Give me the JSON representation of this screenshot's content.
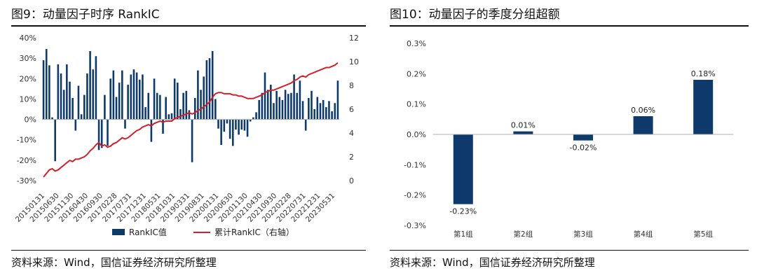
{
  "colors": {
    "bar": "#0d3a6b",
    "line": "#d0202a",
    "axis": "#b0b0b0"
  },
  "left_panel": {
    "title": "图9：动量因子时序 RankIC",
    "source": "资料来源：Wind，国信证券经济研究所整理"
  },
  "right_panel": {
    "title": "图10：动量因子的季度分组超额",
    "source": "资料来源：Wind，国信证券经济研究所整理"
  },
  "chart_data": [
    {
      "type": "bar+line",
      "title": "图9：动量因子时序 RankIC",
      "y_left_ticks": [
        "40%",
        "30%",
        "20%",
        "10%",
        "0%",
        "-10%",
        "-20%",
        "-30%"
      ],
      "y_left_range": [
        -30,
        40
      ],
      "y_right_ticks": [
        "12",
        "10",
        "8",
        "6",
        "4",
        "2",
        "0"
      ],
      "y_right_range": [
        0,
        12
      ],
      "x_tick_labels": [
        "20150131",
        "20150630",
        "20151130",
        "20160430",
        "20160930",
        "20170228",
        "20170731",
        "20171231",
        "20180531",
        "20181031",
        "20190331",
        "20190831",
        "20200131",
        "20200630",
        "20201130",
        "20210430",
        "20210930",
        "20220228",
        "20220731",
        "20221231",
        "20230531"
      ],
      "series": [
        {
          "name": "RankIC值",
          "kind": "bar",
          "unit": "%",
          "values": [
            29,
            34.5,
            26.5,
            1,
            -20.5,
            27,
            22.5,
            14.5,
            27,
            18.5,
            10.5,
            -5.5,
            16.5,
            2.5,
            12,
            22.5,
            33.5,
            24.5,
            31,
            -15,
            -14,
            12,
            -13,
            20,
            24,
            11,
            18,
            24,
            -4.5,
            17,
            22,
            24.5,
            23,
            19.5,
            22,
            6,
            13,
            -11,
            20,
            13,
            12,
            -7,
            11,
            2.5,
            3,
            20,
            18,
            5,
            13,
            14,
            4.5,
            -21,
            10.5,
            24,
            14.5,
            21,
            29,
            30,
            33.5,
            10,
            -4.5,
            -12.5,
            -6,
            -2,
            -9.5,
            -13,
            -5,
            -7.5,
            -5,
            -5.5,
            -8.5,
            -1,
            1,
            3.5,
            9.5,
            13,
            23,
            14.5,
            17,
            8,
            14,
            11,
            9.5,
            14.5,
            12.5,
            13,
            22,
            13,
            19,
            9,
            -5.5,
            10.5,
            14,
            5,
            11,
            8,
            9.5,
            6,
            9,
            4,
            8,
            19
          ]
        },
        {
          "name": "累计RankIC（右轴）",
          "kind": "line",
          "axis": "right",
          "values": [
            0.3,
            0.6,
            0.9,
            1.0,
            0.8,
            0.9,
            1.1,
            1.3,
            1.5,
            1.7,
            1.6,
            1.8,
            1.8,
            1.9,
            2.0,
            2.2,
            2.5,
            2.7,
            3.0,
            3.2,
            2.9,
            3.0,
            2.8,
            2.9,
            3.1,
            3.2,
            3.4,
            3.6,
            3.5,
            3.6,
            3.8,
            4.0,
            4.2,
            4.3,
            4.5,
            4.6,
            4.7,
            4.6,
            4.8,
            4.9,
            5.0,
            4.9,
            5.0,
            5.0,
            5.0,
            5.2,
            5.3,
            5.4,
            5.5,
            5.6,
            5.7,
            5.6,
            5.7,
            5.9,
            6.0,
            6.2,
            6.4,
            6.6,
            7.0,
            7.3,
            7.4,
            7.4,
            7.3,
            7.3,
            7.3,
            7.2,
            7.2,
            7.1,
            7.1,
            7.0,
            6.9,
            6.9,
            6.9,
            7.0,
            7.1,
            7.2,
            7.4,
            7.5,
            7.6,
            7.6,
            7.7,
            7.8,
            7.9,
            8.0,
            8.1,
            8.2,
            8.4,
            8.5,
            8.7,
            8.8,
            8.7,
            8.9,
            9.0,
            9.1,
            9.2,
            9.3,
            9.4,
            9.5,
            9.5,
            9.6,
            9.7,
            9.9
          ]
        }
      ],
      "legend": [
        {
          "label": "RankIC值",
          "kind": "bar"
        },
        {
          "label": "累计RankIC（右轴）",
          "kind": "line"
        }
      ],
      "legend_position": "bottom"
    },
    {
      "type": "bar",
      "title": "图10：动量因子的季度分组超额",
      "categories": [
        "第1组",
        "第2组",
        "第3组",
        "第4组",
        "第5组"
      ],
      "values": [
        -0.23,
        0.01,
        -0.02,
        0.06,
        0.18
      ],
      "value_labels": [
        "-0.23%",
        "0.01%",
        "-0.02%",
        "0.06%",
        "0.18%"
      ],
      "y_ticks": [
        "0.3%",
        "0.2%",
        "0.1%",
        "0.0%",
        "-0.1%",
        "-0.2%",
        "-0.3%"
      ],
      "y_range": [
        -0.3,
        0.3
      ],
      "unit": "%"
    }
  ]
}
